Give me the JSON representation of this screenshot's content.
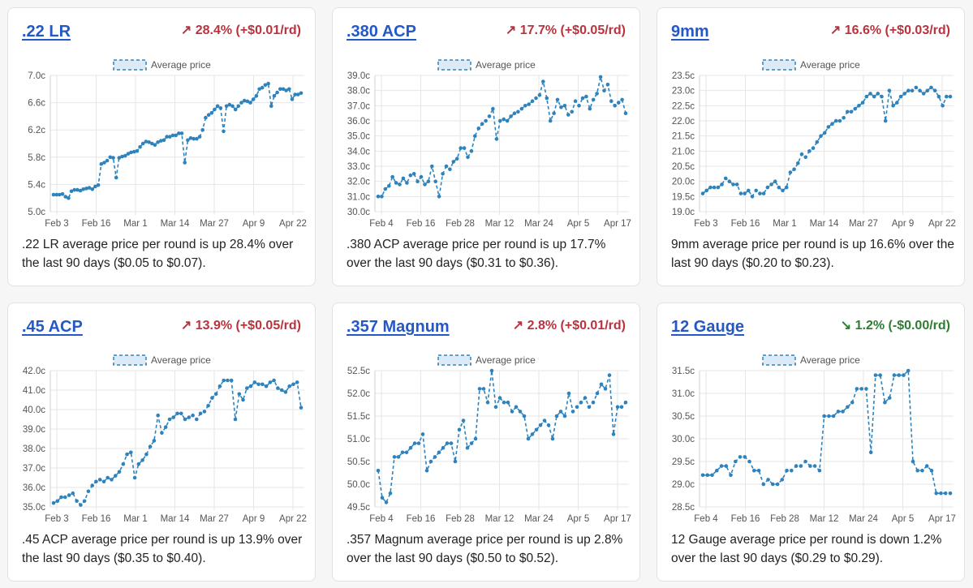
{
  "cards": [
    {
      "title": ".22 LR",
      "change": "↗ 28.4% (+$0.01/rd)",
      "trend": "up",
      "description": ".22 LR average price per round is up 28.4% over the last 90 days ($0.05 to $0.07).",
      "chart_data": {
        "type": "line",
        "legend": "Average price",
        "yticks": [
          "7.0c",
          "6.6c",
          "6.2c",
          "5.8c",
          "5.4c",
          "5.0c"
        ],
        "ylim": [
          5.0,
          7.0
        ],
        "xticks": [
          "Feb 3",
          "Feb 16",
          "Mar 1",
          "Mar 14",
          "Mar 27",
          "Apr 9",
          "Apr 22"
        ],
        "x_range": [
          0,
          84
        ],
        "values": [
          5.25,
          5.25,
          5.25,
          5.26,
          5.22,
          5.2,
          5.3,
          5.32,
          5.32,
          5.31,
          5.33,
          5.34,
          5.35,
          5.33,
          5.37,
          5.39,
          5.7,
          5.72,
          5.75,
          5.8,
          5.79,
          5.5,
          5.79,
          5.81,
          5.82,
          5.85,
          5.87,
          5.88,
          5.89,
          5.95,
          6.0,
          6.03,
          6.02,
          6.0,
          5.98,
          6.02,
          6.04,
          6.05,
          6.1,
          6.1,
          6.12,
          6.12,
          6.15,
          6.15,
          5.72,
          6.05,
          6.08,
          6.07,
          6.07,
          6.1,
          6.2,
          6.38,
          6.42,
          6.45,
          6.5,
          6.55,
          6.52,
          6.18,
          6.55,
          6.57,
          6.55,
          6.5,
          6.55,
          6.6,
          6.63,
          6.62,
          6.6,
          6.65,
          6.7,
          6.8,
          6.82,
          6.86,
          6.88,
          6.55,
          6.7,
          6.75,
          6.8,
          6.8,
          6.78,
          6.8,
          6.65,
          6.72,
          6.72,
          6.74
        ]
      }
    },
    {
      "title": ".380 ACP",
      "change": "↗ 17.7% (+$0.05/rd)",
      "trend": "up",
      "description": ".380 ACP average price per round is up 17.7% over the last 90 days ($0.31 to $0.36).",
      "chart_data": {
        "type": "line",
        "legend": "Average price",
        "yticks": [
          "39.0c",
          "38.0c",
          "37.0c",
          "36.0c",
          "35.0c",
          "34.0c",
          "33.0c",
          "32.0c",
          "31.0c",
          "30.0c"
        ],
        "ylim": [
          30.0,
          39.0
        ],
        "xticks": [
          "Feb 4",
          "Feb 16",
          "Feb 28",
          "Mar 12",
          "Mar 24",
          "Apr 5",
          "Apr 17"
        ],
        "x_range": [
          0,
          84
        ],
        "values": [
          31.0,
          31.0,
          31.5,
          31.7,
          32.3,
          31.9,
          31.8,
          32.2,
          31.9,
          32.4,
          32.5,
          32.0,
          32.3,
          31.8,
          32.0,
          33.0,
          32.0,
          31.0,
          32.5,
          33.0,
          32.8,
          33.3,
          33.5,
          34.2,
          34.2,
          33.6,
          34.0,
          35.0,
          35.5,
          35.8,
          36.0,
          36.3,
          36.8,
          34.8,
          36.0,
          36.1,
          36.0,
          36.3,
          36.5,
          36.6,
          36.8,
          37.0,
          37.1,
          37.3,
          37.5,
          37.7,
          38.6,
          37.5,
          36.0,
          36.5,
          37.4,
          36.9,
          37.0,
          36.4,
          36.6,
          37.3,
          37.0,
          37.5,
          37.6,
          36.8,
          37.4,
          37.8,
          38.9,
          38.0,
          38.4,
          37.3,
          37.0,
          37.2,
          37.4,
          36.5
        ]
      }
    },
    {
      "title": "9mm",
      "change": "↗ 16.6% (+$0.03/rd)",
      "trend": "up",
      "description": "9mm average price per round is up 16.6% over the last 90 days ($0.20 to $0.23).",
      "chart_data": {
        "type": "line",
        "legend": "Average price",
        "yticks": [
          "23.5c",
          "23.0c",
          "22.5c",
          "22.0c",
          "21.5c",
          "21.0c",
          "20.5c",
          "20.0c",
          "19.5c",
          "19.0c"
        ],
        "ylim": [
          19.0,
          23.5
        ],
        "xticks": [
          "Feb 3",
          "Feb 16",
          "Mar 1",
          "Mar 14",
          "Mar 27",
          "Apr 9",
          "Apr 22"
        ],
        "x_range": [
          0,
          84
        ],
        "values": [
          19.6,
          19.7,
          19.8,
          19.8,
          19.8,
          19.9,
          20.1,
          20.0,
          19.9,
          19.9,
          19.6,
          19.6,
          19.7,
          19.5,
          19.7,
          19.6,
          19.6,
          19.8,
          19.9,
          20.0,
          19.8,
          19.7,
          19.8,
          20.3,
          20.4,
          20.6,
          20.9,
          20.8,
          21.0,
          21.1,
          21.3,
          21.5,
          21.6,
          21.8,
          21.9,
          22.0,
          22.0,
          22.1,
          22.3,
          22.3,
          22.4,
          22.5,
          22.6,
          22.8,
          22.9,
          22.8,
          22.9,
          22.8,
          22.0,
          23.0,
          22.5,
          22.6,
          22.8,
          22.9,
          23.0,
          23.0,
          23.1,
          23.0,
          22.9,
          23.0,
          23.1,
          23.0,
          22.8,
          22.5,
          22.8,
          22.8
        ]
      }
    },
    {
      "title": ".45 ACP",
      "change": "↗ 13.9% (+$0.05/rd)",
      "trend": "up",
      "description": ".45 ACP average price per round is up 13.9% over the last 90 days ($0.35 to $0.40).",
      "chart_data": {
        "type": "line",
        "legend": "Average price",
        "yticks": [
          "42.0c",
          "41.0c",
          "40.0c",
          "39.0c",
          "38.0c",
          "37.0c",
          "36.0c",
          "35.0c"
        ],
        "ylim": [
          35.0,
          42.0
        ],
        "xticks": [
          "Feb 3",
          "Feb 16",
          "Mar 1",
          "Mar 14",
          "Mar 27",
          "Apr 9",
          "Apr 22"
        ],
        "x_range": [
          0,
          84
        ],
        "values": [
          35.2,
          35.3,
          35.5,
          35.5,
          35.6,
          35.7,
          35.3,
          35.1,
          35.3,
          35.8,
          36.1,
          36.3,
          36.4,
          36.3,
          36.5,
          36.4,
          36.6,
          36.8,
          37.2,
          37.7,
          37.8,
          36.5,
          37.2,
          37.4,
          37.7,
          38.1,
          38.4,
          39.7,
          38.8,
          39.1,
          39.5,
          39.6,
          39.8,
          39.8,
          39.5,
          39.6,
          39.7,
          39.5,
          39.8,
          39.9,
          40.2,
          40.6,
          40.8,
          41.2,
          41.5,
          41.5,
          41.5,
          39.5,
          40.8,
          40.5,
          41.1,
          41.2,
          41.4,
          41.3,
          41.3,
          41.2,
          41.4,
          41.5,
          41.1,
          41.0,
          40.9,
          41.2,
          41.3,
          41.4,
          40.1
        ]
      }
    },
    {
      "title": ".357 Magnum",
      "change": "↗ 2.8% (+$0.01/rd)",
      "trend": "up",
      "description": ".357 Magnum average price per round is up 2.8% over the last 90 days ($0.50 to $0.52).",
      "chart_data": {
        "type": "line",
        "legend": "Average price",
        "yticks": [
          "52.5c",
          "52.0c",
          "51.5c",
          "51.0c",
          "50.5c",
          "50.0c",
          "49.5c"
        ],
        "ylim": [
          49.5,
          52.5
        ],
        "xticks": [
          "Feb 4",
          "Feb 16",
          "Feb 28",
          "Mar 12",
          "Mar 24",
          "Apr 5",
          "Apr 17"
        ],
        "x_range": [
          0,
          84
        ],
        "values": [
          50.3,
          49.7,
          49.6,
          49.8,
          50.6,
          50.6,
          50.7,
          50.7,
          50.8,
          50.9,
          50.9,
          51.1,
          50.3,
          50.5,
          50.6,
          50.7,
          50.8,
          50.9,
          50.9,
          50.5,
          51.2,
          51.4,
          50.8,
          50.9,
          51.0,
          52.1,
          52.1,
          51.8,
          52.5,
          51.7,
          51.9,
          51.8,
          51.8,
          51.6,
          51.7,
          51.6,
          51.5,
          51.0,
          51.1,
          51.2,
          51.3,
          51.4,
          51.3,
          51.0,
          51.5,
          51.6,
          51.5,
          52.0,
          51.6,
          51.7,
          51.8,
          51.9,
          51.7,
          51.8,
          52.0,
          52.2,
          52.1,
          52.4,
          51.1,
          51.7,
          51.7,
          51.8
        ]
      }
    },
    {
      "title": "12 Gauge",
      "change": "↘ 1.2% (-$0.00/rd)",
      "trend": "down",
      "description": "12 Gauge average price per round is down 1.2% over the last 90 days ($0.29 to $0.29).",
      "chart_data": {
        "type": "line",
        "legend": "Average price",
        "yticks": [
          "31.5c",
          "31.0c",
          "30.5c",
          "30.0c",
          "29.5c",
          "29.0c",
          "28.5c"
        ],
        "ylim": [
          28.5,
          31.5
        ],
        "xticks": [
          "Feb 4",
          "Feb 16",
          "Feb 28",
          "Mar 12",
          "Mar 24",
          "Apr 5",
          "Apr 17"
        ],
        "x_range": [
          0,
          84
        ],
        "values": [
          29.2,
          29.2,
          29.2,
          29.3,
          29.4,
          29.4,
          29.2,
          29.5,
          29.6,
          29.6,
          29.5,
          29.3,
          29.3,
          29.0,
          29.1,
          29.0,
          29.0,
          29.1,
          29.3,
          29.3,
          29.4,
          29.4,
          29.5,
          29.4,
          29.4,
          29.3,
          30.5,
          30.5,
          30.5,
          30.6,
          30.6,
          30.7,
          30.8,
          31.1,
          31.1,
          31.1,
          29.7,
          31.4,
          31.4,
          30.8,
          30.9,
          31.4,
          31.4,
          31.4,
          31.5,
          29.5,
          29.3,
          29.3,
          29.4,
          29.3,
          28.8,
          28.8,
          28.8,
          28.8
        ]
      }
    }
  ]
}
